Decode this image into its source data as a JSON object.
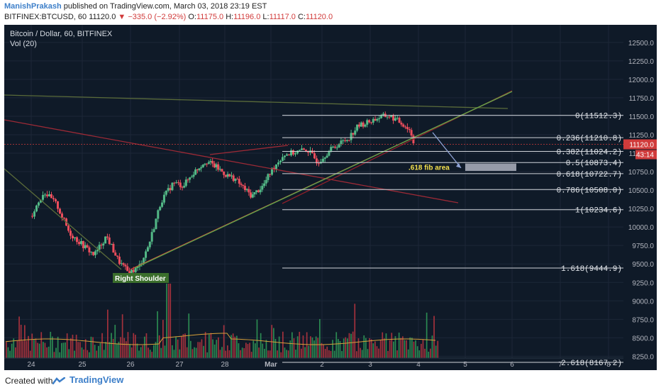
{
  "header": {
    "author": "ManishPrakash",
    "published": " published on TradingView.com, March 03, 2018 23:19 EST",
    "symbol": "BITFINEX:BTCUSD, 60",
    "last": "11120.0",
    "change": "▼ −335.0 (−2.92%)",
    "o_label": "O:",
    "o": "11175.0",
    "h_label": "H:",
    "h": "11196.0",
    "l_label": "L:",
    "l": "11117.0",
    "c_label": "C:",
    "c": "11120.0"
  },
  "chart_title": "Bitcoin / Dollar, 60, BITFINEX",
  "volume_label": "Vol (20)",
  "footer": {
    "created": "Created with",
    "brand": "TradingView"
  },
  "colors": {
    "bg": "#0f1a28",
    "up": "#53b987",
    "down": "#eb4d5c",
    "axis_text": "#b2b5be",
    "accent_red": "#d13b3b",
    "brand": "#3d7fc9"
  },
  "chart_data": {
    "type": "candlestick",
    "ylim": [
      8100,
      12700
    ],
    "y_ticks": [
      "12500.0",
      "12250.0",
      "12000.0",
      "11750.0",
      "11500.0",
      "11250.0",
      "11000.0",
      "10750.0",
      "10500.0",
      "10250.0",
      "10000.0",
      "9750.0",
      "9500.0",
      "9250.0",
      "9000.0",
      "8750.0",
      "8500.0",
      "8250.0"
    ],
    "x_ticks": [
      "24",
      "25",
      "26",
      "27",
      "28",
      "Mar",
      "2",
      "3",
      "4",
      "5",
      "6",
      "7",
      "8"
    ],
    "last_price": "11120.0",
    "countdown": "43:14",
    "fib_levels": [
      {
        "label": "0(11512.3)",
        "value": 11512.3
      },
      {
        "label": "0.236(11210.8)",
        "value": 11210.8
      },
      {
        "label": "0.382(11024.2)",
        "value": 11024.2
      },
      {
        "label": "0.5(10873.4)",
        "value": 10873.4
      },
      {
        "label": "0.618(10722.7)",
        "value": 10722.7
      },
      {
        "label": "0.786(10508.0)",
        "value": 10508.0
      },
      {
        "label": "1(10234.6)",
        "value": 10234.6
      },
      {
        "label": "1.618(9444.9)",
        "value": 9444.9
      },
      {
        "label": "2.618(8167.2)",
        "value": 8167.2
      }
    ],
    "annotations": [
      {
        "text": ".618 fib area",
        "color": "#f4e04d"
      },
      {
        "text": "Right Shoulder",
        "color": "#ffffff"
      }
    ],
    "price_path": [
      [
        0,
        10150
      ],
      [
        6,
        10480
      ],
      [
        12,
        10300
      ],
      [
        18,
        9920
      ],
      [
        24,
        9760
      ],
      [
        30,
        9620
      ],
      [
        36,
        9880
      ],
      [
        42,
        9540
      ],
      [
        47,
        9380
      ],
      [
        52,
        9450
      ],
      [
        57,
        9760
      ],
      [
        63,
        10350
      ],
      [
        69,
        10600
      ],
      [
        74,
        10560
      ],
      [
        80,
        10750
      ],
      [
        86,
        10900
      ],
      [
        91,
        10820
      ],
      [
        97,
        10700
      ],
      [
        101,
        10660
      ],
      [
        106,
        10520
      ],
      [
        110,
        10420
      ],
      [
        116,
        10560
      ],
      [
        121,
        10800
      ],
      [
        126,
        10980
      ],
      [
        131,
        11010
      ],
      [
        137,
        11050
      ],
      [
        142,
        10880
      ],
      [
        147,
        11020
      ],
      [
        152,
        11120
      ],
      [
        157,
        11200
      ],
      [
        162,
        11370
      ],
      [
        167,
        11420
      ],
      [
        172,
        11480
      ],
      [
        177,
        11510
      ],
      [
        181,
        11450
      ],
      [
        185,
        11380
      ],
      [
        188,
        11300
      ],
      [
        190,
        11120
      ]
    ],
    "volume_range": [
      0,
      1
    ]
  }
}
